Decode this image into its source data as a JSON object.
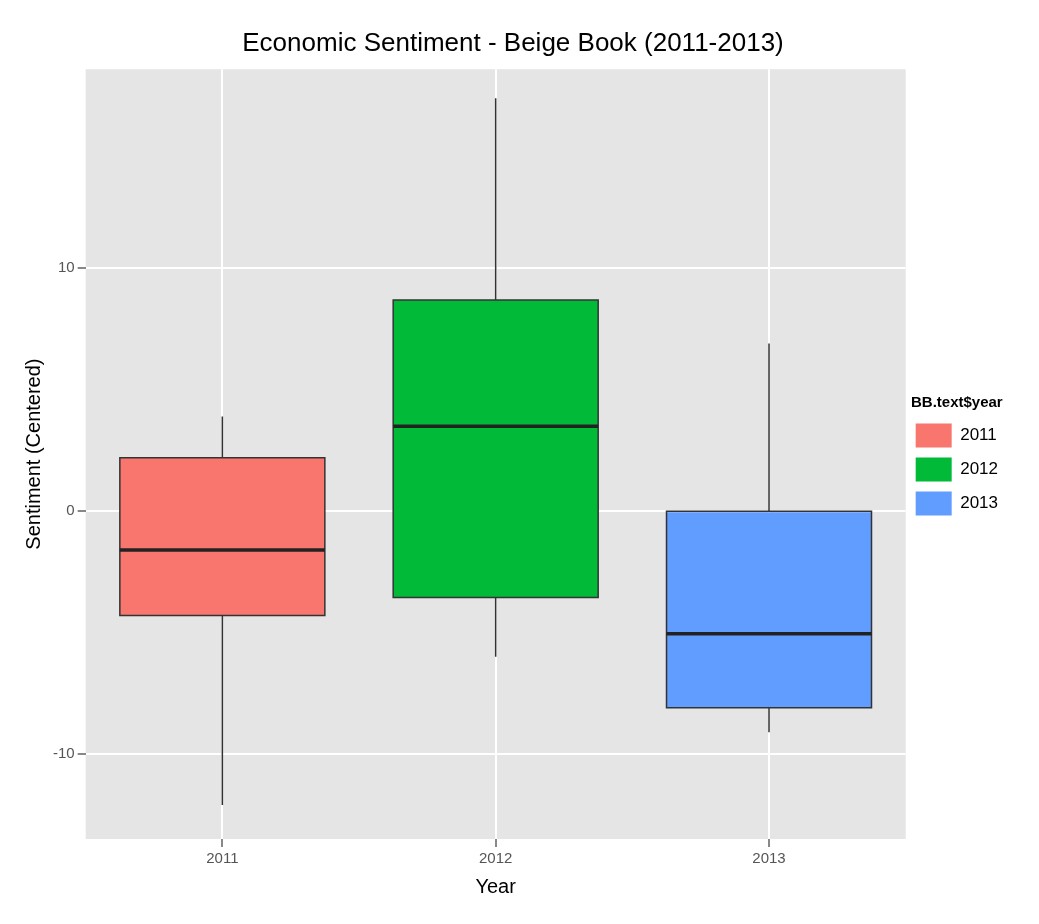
{
  "chart_data": {
    "type": "box",
    "title": "Economic Sentiment - Beige Book (2011-2013)",
    "xlabel": "Year",
    "ylabel": "Sentiment (Centered)",
    "legend_title": "BB.text$year",
    "categories": [
      "2011",
      "2012",
      "2013"
    ],
    "series": [
      {
        "name": "2011",
        "color": "#f8766d",
        "boxes": [
          {
            "low": -12.1,
            "q1": -4.3,
            "median": -1.6,
            "q3": 2.2,
            "high": 3.9
          },
          null,
          null
        ]
      },
      {
        "name": "2012",
        "color": "#00ba38",
        "boxes": [
          null,
          {
            "low": -6,
            "q1": -3.55,
            "median": 3.5,
            "q3": 8.7,
            "high": 17
          },
          null
        ]
      },
      {
        "name": "2013",
        "color": "#619cff",
        "boxes": [
          null,
          null,
          {
            "low": -9.1,
            "q1": -8.1,
            "median": -5.05,
            "q3": 0,
            "high": 6.9
          }
        ]
      }
    ],
    "ylim": [
      -13.5,
      18.2
    ],
    "yticks": [
      -10,
      0,
      10
    ],
    "grid": true,
    "legend": "right"
  }
}
